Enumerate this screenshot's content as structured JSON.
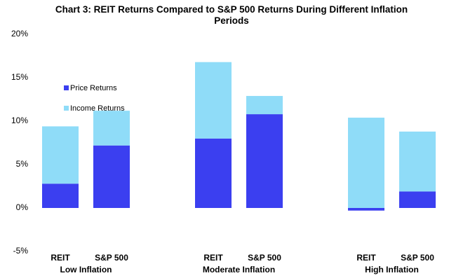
{
  "chart_data": {
    "type": "bar",
    "stacked": true,
    "title": "Chart 3: REIT Returns Compared to S&P 500 Returns During Different Inflation Periods",
    "categories": [
      "REIT",
      "S&P 500",
      "REIT",
      "S&P 500",
      "REIT",
      "S&P 500"
    ],
    "groups": [
      "Low Inflation",
      "Moderate Inflation",
      "High Inflation"
    ],
    "series": [
      {
        "name": "Price Returns",
        "color": "#3b3ff0",
        "values": [
          2.8,
          7.2,
          8.0,
          10.8,
          -0.3,
          1.9
        ]
      },
      {
        "name": "Income Returns",
        "color": "#8fdcf8",
        "values": [
          6.6,
          4.0,
          8.8,
          2.1,
          10.4,
          6.9
        ]
      }
    ],
    "ylim": [
      -5,
      20
    ],
    "yticks": [
      {
        "value": -5,
        "label": "-5%"
      },
      {
        "value": 0,
        "label": "0%"
      },
      {
        "value": 5,
        "label": "5%"
      },
      {
        "value": 10,
        "label": "10%"
      },
      {
        "value": 15,
        "label": "15%"
      },
      {
        "value": 20,
        "label": "20%"
      }
    ],
    "grid": false,
    "legend": "upper left"
  }
}
